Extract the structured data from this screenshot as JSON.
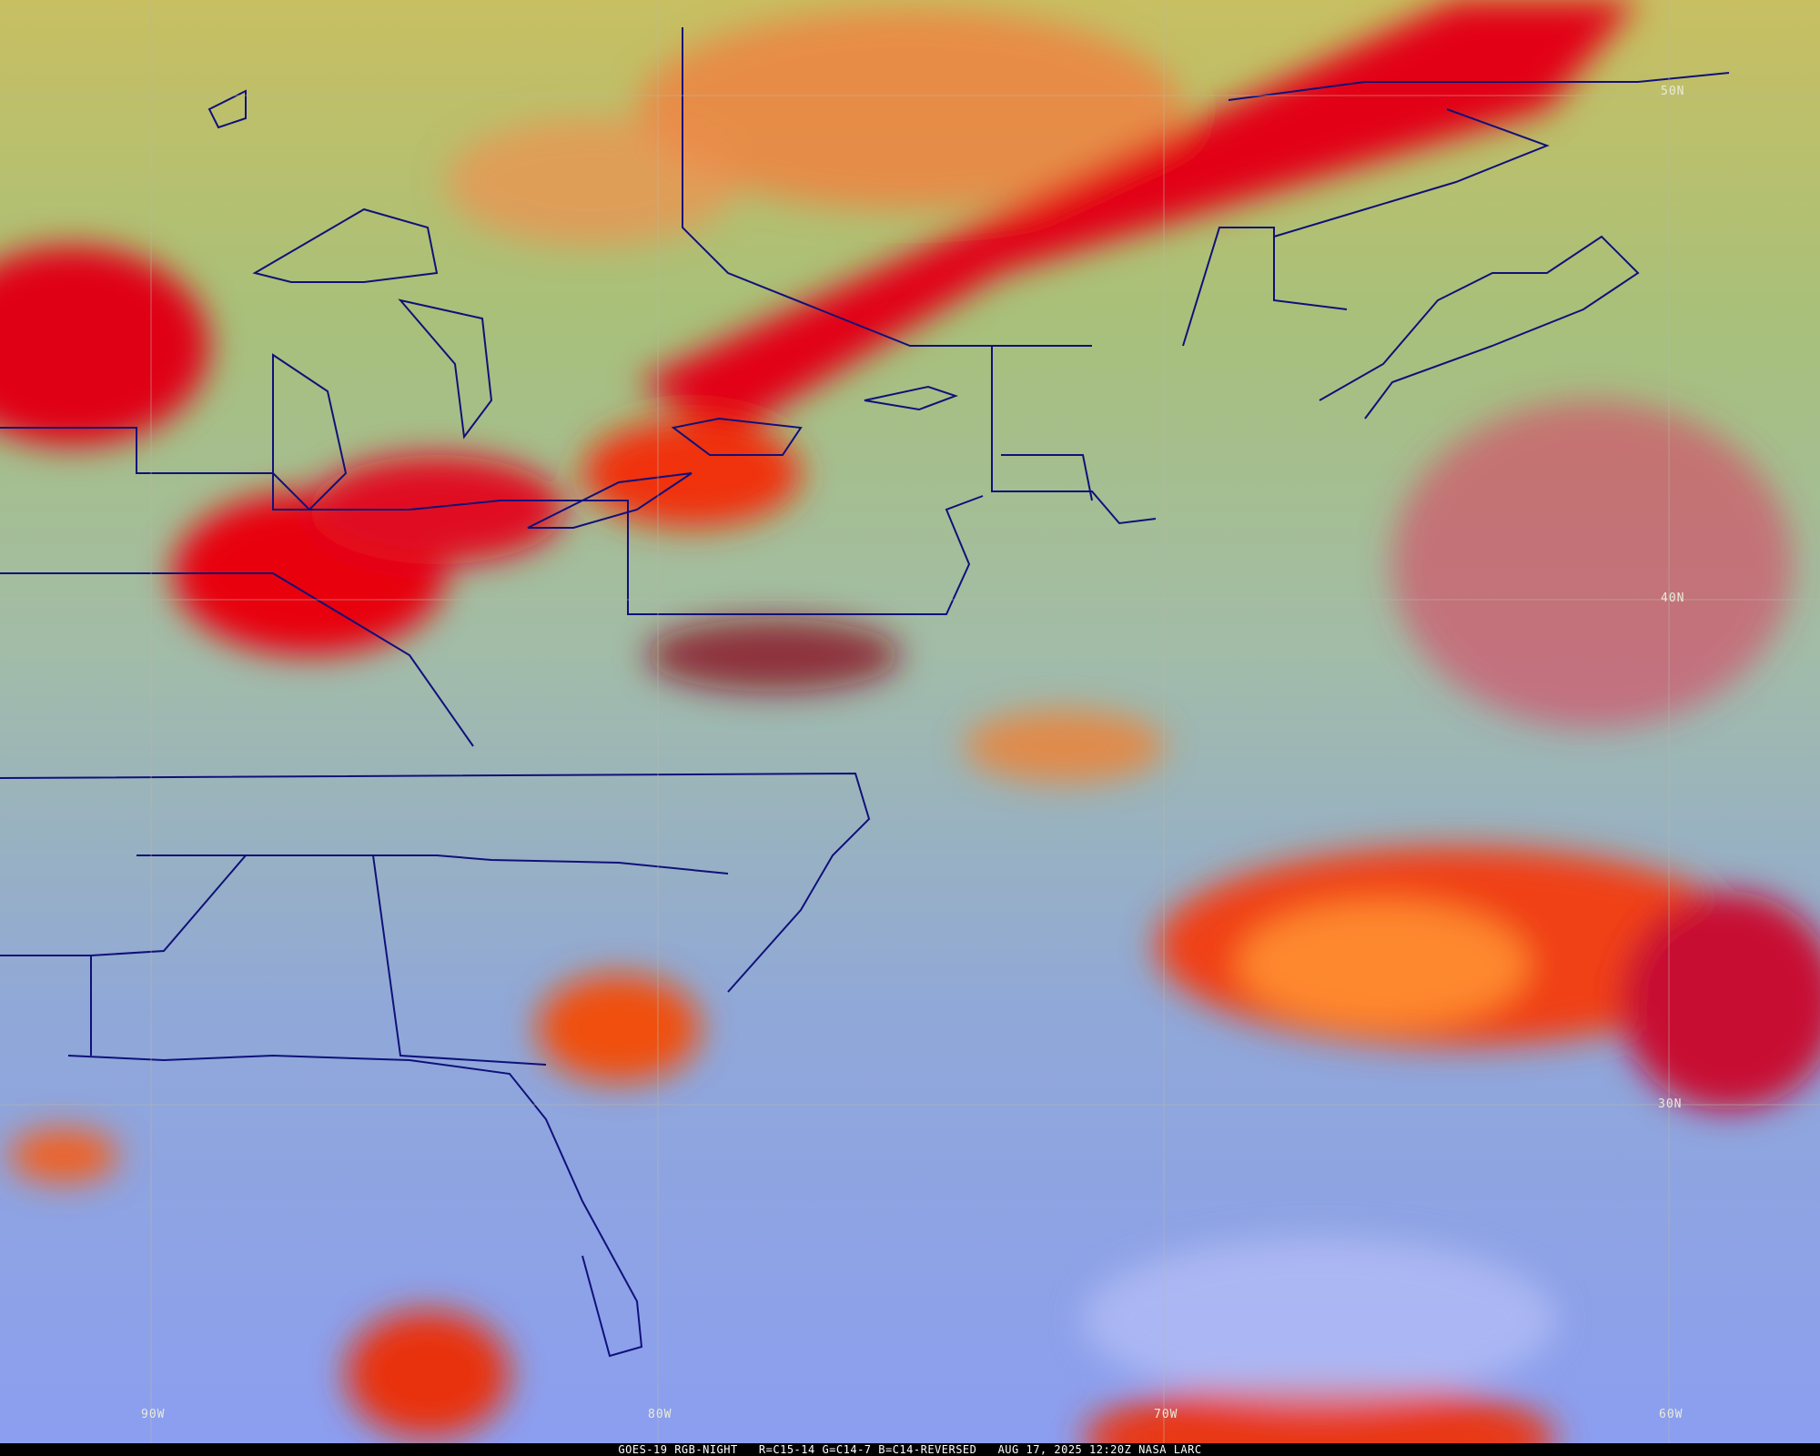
{
  "caption": {
    "satellite": "GOES-19 RGB-NIGHT",
    "channels": "R=C15-14 G=C14-7 B=C14-REVERSED",
    "timestamp": "AUG 17, 2025 12:20Z NASA LARC"
  },
  "grid": {
    "latitudes": [
      "50N",
      "40N",
      "30N"
    ],
    "longitudes": [
      "90W",
      "80W",
      "70W",
      "60W"
    ]
  },
  "colors": {
    "high_cloud": "#e00010",
    "convective_cloud": "#ff8a20",
    "low_cloud_land": "#9fc0a8",
    "ocean_clear": "#8fa8e8",
    "northern_land": "#c8c060",
    "boundaries": "#10107a"
  }
}
